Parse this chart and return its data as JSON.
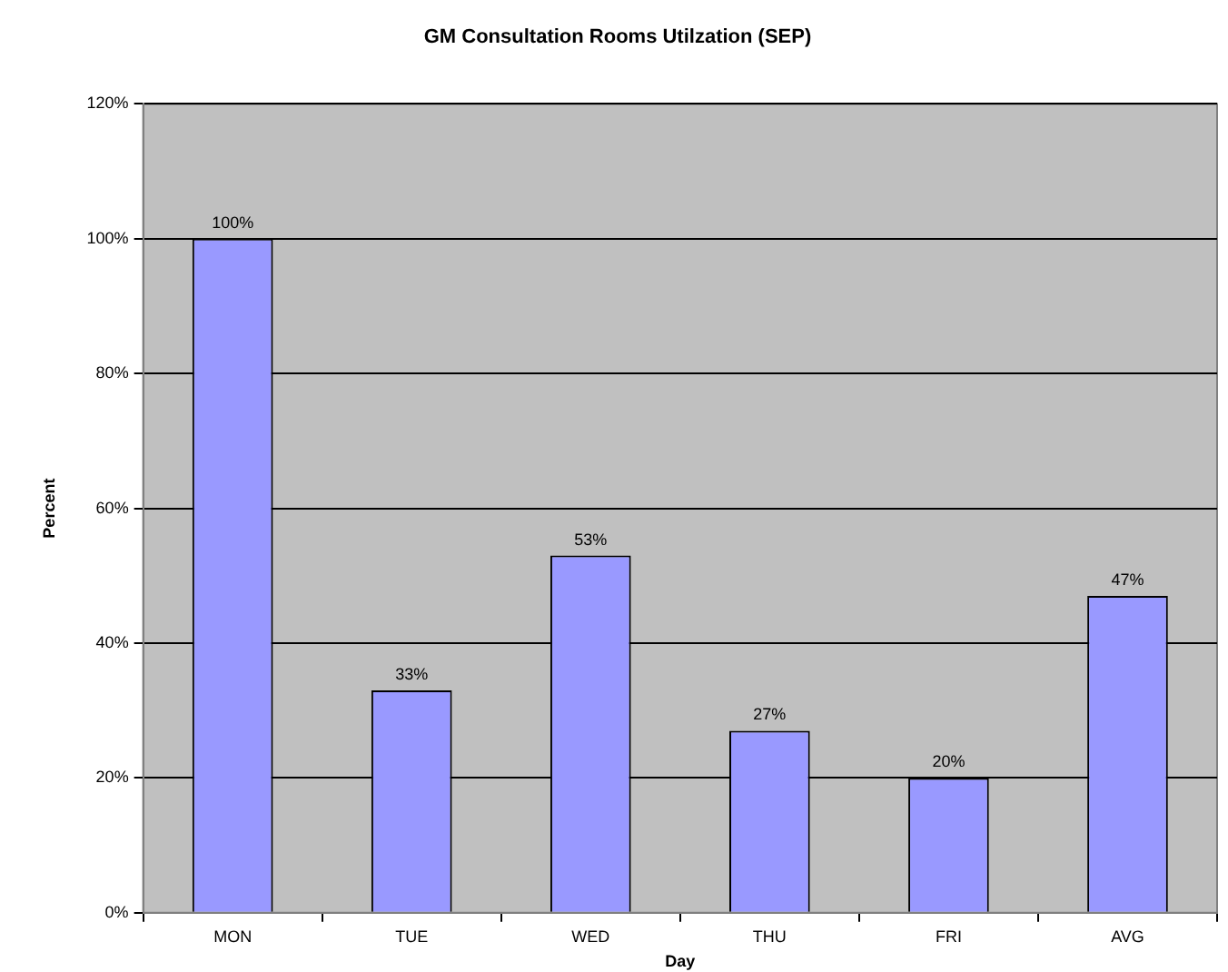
{
  "chart_data": {
    "type": "bar",
    "title": "GM Consultation Rooms Utilzation (SEP)",
    "xlabel": "Day",
    "ylabel": "Percent",
    "categories": [
      "MON",
      "TUE",
      "WED",
      "THU",
      "FRI",
      "AVG"
    ],
    "values": [
      100,
      33,
      53,
      27,
      20,
      47
    ],
    "color": "#9999ff",
    "value_labels": [
      "100%",
      "33%",
      "53%",
      "27%",
      "20%",
      "47%"
    ],
    "ylim": [
      0,
      120
    ],
    "yticks": [
      {
        "value": 0,
        "label": "0%"
      },
      {
        "value": 20,
        "label": "20%"
      },
      {
        "value": 40,
        "label": "40%"
      },
      {
        "value": 60,
        "label": "60%"
      },
      {
        "value": 80,
        "label": "80%"
      },
      {
        "value": 100,
        "label": "100%"
      },
      {
        "value": 120,
        "label": "120%"
      }
    ],
    "grid": "y",
    "legend": false
  }
}
